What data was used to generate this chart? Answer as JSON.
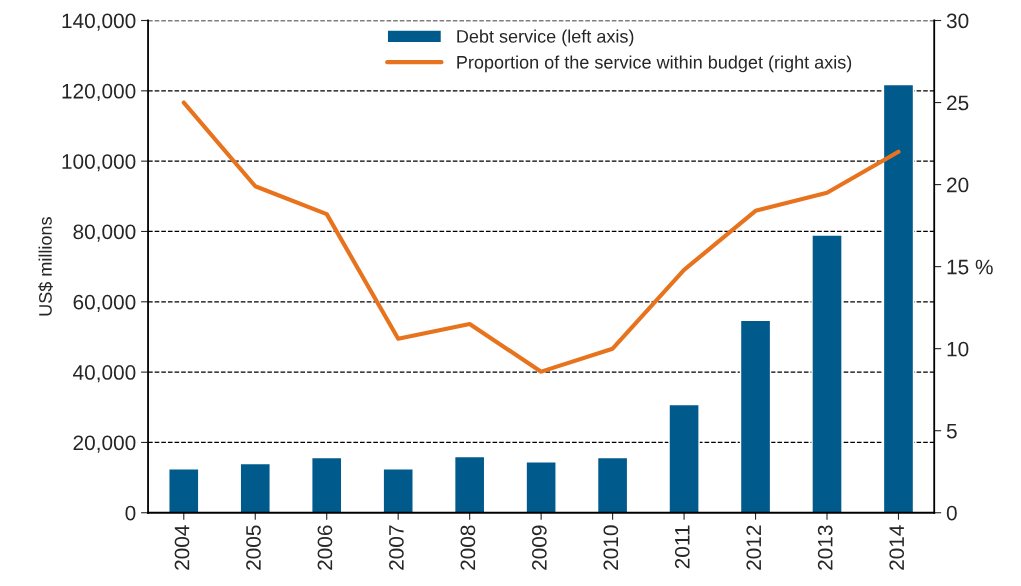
{
  "chart_data": {
    "type": "bar",
    "categories": [
      "2004",
      "2005",
      "2006",
      "2007",
      "2008",
      "2009",
      "2010",
      "2011",
      "2012",
      "2013",
      "2014"
    ],
    "series": [
      {
        "name": "Debt service (left axis)",
        "color": "#005a8c",
        "values": [
          12500,
          14000,
          15700,
          12500,
          16000,
          14500,
          15700,
          30800,
          54700,
          79000,
          121800
        ]
      },
      {
        "name": "Proportion of the service within budget (right axis)",
        "color": "#e8731e",
        "type": "line",
        "axis": "y2",
        "values": [
          25.0,
          19.9,
          18.2,
          10.6,
          11.5,
          8.6,
          10.0,
          14.8,
          18.4,
          19.5,
          22.0
        ]
      }
    ],
    "ylabel": "US$ millions",
    "ylim": [
      0,
      140000
    ],
    "yticks": [
      {
        "value": 0,
        "label": "0"
      },
      {
        "value": 20000,
        "label": "20,000"
      },
      {
        "value": 40000,
        "label": "40,000"
      },
      {
        "value": 60000,
        "label": "60,000"
      },
      {
        "value": 80000,
        "label": "80,000"
      },
      {
        "value": 100000,
        "label": "100,000"
      },
      {
        "value": 120000,
        "label": "120,000"
      },
      {
        "value": 140000,
        "label": "140,000"
      }
    ],
    "y2lim": [
      0,
      30
    ],
    "y2ticks": [
      0,
      5,
      10,
      {
        "value": 15,
        "label": "15 %"
      },
      20,
      25,
      30
    ],
    "grid": "y",
    "legend": "top"
  }
}
